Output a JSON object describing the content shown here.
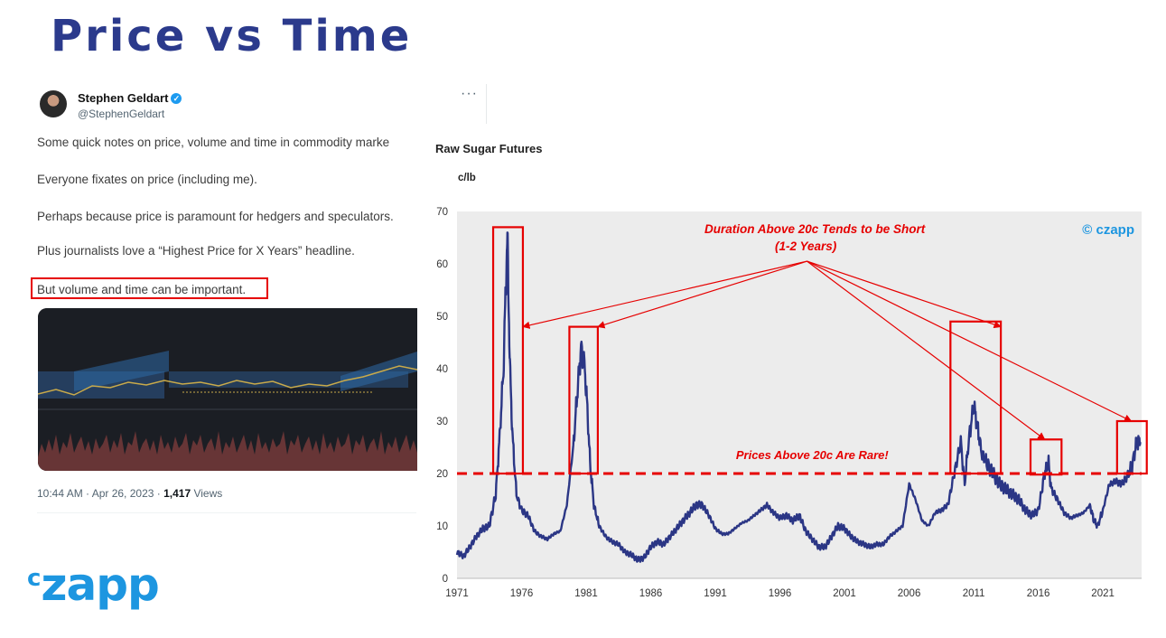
{
  "slide": {
    "title": "Price vs Time"
  },
  "tweet": {
    "author": "Stephen Geldart",
    "handle": "@StephenGeldart",
    "more_label": "···",
    "lines": [
      "Some quick notes on price, volume and time in commodity marke",
      "Everyone fixates on price (including me).",
      "Perhaps because price is paramount for hedgers and speculators.",
      "Plus journalists love a “Highest Price for X Years” headline.",
      "But volume and time can be important."
    ],
    "timestamp": "10:44 AM · Apr 26, 2023 · ",
    "views_count": "1,417",
    "views_label": "Views"
  },
  "logo": {
    "c": "c",
    "text": "zapp"
  },
  "colors": {
    "title": "#2b3a8c",
    "line": "#2b3685",
    "annotation": "#e60000",
    "brand": "#1d96e0",
    "plot_bg": "#ececec"
  },
  "chart_data": {
    "type": "line",
    "title": "Raw Sugar Futures",
    "ylabel": "c/lb",
    "xlabel": "",
    "ylim": [
      0,
      70
    ],
    "xlim": [
      1971,
      2024
    ],
    "x_ticks": [
      "1971",
      "1976",
      "1981",
      "1986",
      "1991",
      "1996",
      "2001",
      "2006",
      "2011",
      "2016",
      "2021"
    ],
    "y_ticks": [
      "0",
      "10",
      "20",
      "30",
      "40",
      "50",
      "60",
      "70"
    ],
    "grid": false,
    "watermark": "© czapp",
    "series": [
      {
        "x": [
          1971.0,
          1971.5,
          1972.0,
          1972.5,
          1973.0,
          1973.5,
          1974.0,
          1974.3,
          1974.6,
          1974.8,
          1974.9,
          1975.1,
          1975.3,
          1975.6,
          1976.0,
          1976.5,
          1977.0,
          1977.5,
          1978.0,
          1978.5,
          1979.0,
          1979.5,
          1980.0,
          1980.3,
          1980.6,
          1980.9,
          1981.1,
          1981.3,
          1981.6,
          1982.0,
          1982.5,
          1983.0,
          1983.5,
          1984.0,
          1984.5,
          1985.0,
          1985.5,
          1986.0,
          1986.5,
          1987.0,
          1987.5,
          1988.0,
          1988.5,
          1989.0,
          1989.5,
          1990.0,
          1990.5,
          1991.0,
          1991.5,
          1992.0,
          1992.5,
          1993.0,
          1993.5,
          1994.0,
          1994.5,
          1995.0,
          1995.5,
          1996.0,
          1996.5,
          1997.0,
          1997.5,
          1998.0,
          1998.5,
          1999.0,
          1999.5,
          2000.0,
          2000.5,
          2001.0,
          2001.5,
          2002.0,
          2002.5,
          2003.0,
          2003.5,
          2004.0,
          2004.5,
          2005.0,
          2005.5,
          2006.0,
          2006.5,
          2007.0,
          2007.5,
          2008.0,
          2008.5,
          2009.0,
          2009.5,
          2010.0,
          2010.3,
          2010.6,
          2011.0,
          2011.3,
          2011.6,
          2012.0,
          2012.5,
          2013.0,
          2013.5,
          2014.0,
          2014.5,
          2015.0,
          2015.5,
          2016.0,
          2016.5,
          2016.8,
          2017.0,
          2017.5,
          2018.0,
          2018.5,
          2019.0,
          2019.5,
          2020.0,
          2020.3,
          2020.6,
          2021.0,
          2021.5,
          2022.0,
          2022.5,
          2023.0,
          2023.3,
          2023.6,
          2023.9
        ],
        "y": [
          5,
          4.2,
          6,
          8,
          9.5,
          10,
          16,
          27,
          40,
          58,
          65,
          40,
          27,
          16,
          13,
          12,
          9,
          8,
          7.5,
          8.5,
          9,
          14,
          25,
          35,
          44,
          40,
          32,
          22,
          14,
          10,
          8,
          7,
          6.5,
          5,
          4.5,
          3.5,
          4,
          6,
          7,
          6.5,
          8,
          9.5,
          11,
          12.5,
          14,
          14,
          12,
          9.5,
          8.5,
          8.5,
          9.5,
          10.5,
          11,
          12,
          13,
          14,
          12.5,
          11.5,
          12,
          11,
          12,
          9,
          7.5,
          6,
          6,
          8,
          10,
          9.5,
          8,
          7,
          6.5,
          6,
          6.5,
          6.5,
          8,
          9,
          10,
          18,
          15,
          11,
          10,
          12.5,
          13,
          14,
          20,
          26,
          18,
          26,
          33,
          29,
          24,
          22,
          20,
          18,
          17,
          16,
          15,
          13,
          12,
          13,
          20,
          22,
          17,
          15,
          12.5,
          11.5,
          12,
          12.5,
          14,
          11,
          10,
          13,
          18,
          18.5,
          18,
          20,
          22,
          26,
          26
        ]
      }
    ],
    "threshold": {
      "y": 20,
      "label": "Prices Above 20c Are Rare!"
    },
    "annotation": {
      "text": "Duration Above 20c Tends to be Short",
      "subtext": "(1-2 Years)"
    },
    "highlight_periods": [
      {
        "x": [
          1973.8,
          1976.1
        ],
        "y": [
          20,
          67
        ]
      },
      {
        "x": [
          1979.7,
          1981.9
        ],
        "y": [
          20,
          48
        ]
      },
      {
        "x": [
          2009.2,
          2013.1
        ],
        "y": [
          20,
          49
        ]
      },
      {
        "x": [
          2015.4,
          2017.8
        ],
        "y": [
          19.8,
          26.5
        ]
      },
      {
        "x": [
          2022.1,
          2024.4
        ],
        "y": [
          20,
          30
        ]
      }
    ],
    "annotation_origin": {
      "x": 1998.1,
      "y": 60.5
    },
    "annotation_targets": [
      {
        "x": 1976.1,
        "y": 48
      },
      {
        "x": 1981.9,
        "y": 48
      },
      {
        "x": 2013.1,
        "y": 48
      },
      {
        "x": 2016.5,
        "y": 26.5
      },
      {
        "x": 2023.2,
        "y": 30
      }
    ]
  }
}
